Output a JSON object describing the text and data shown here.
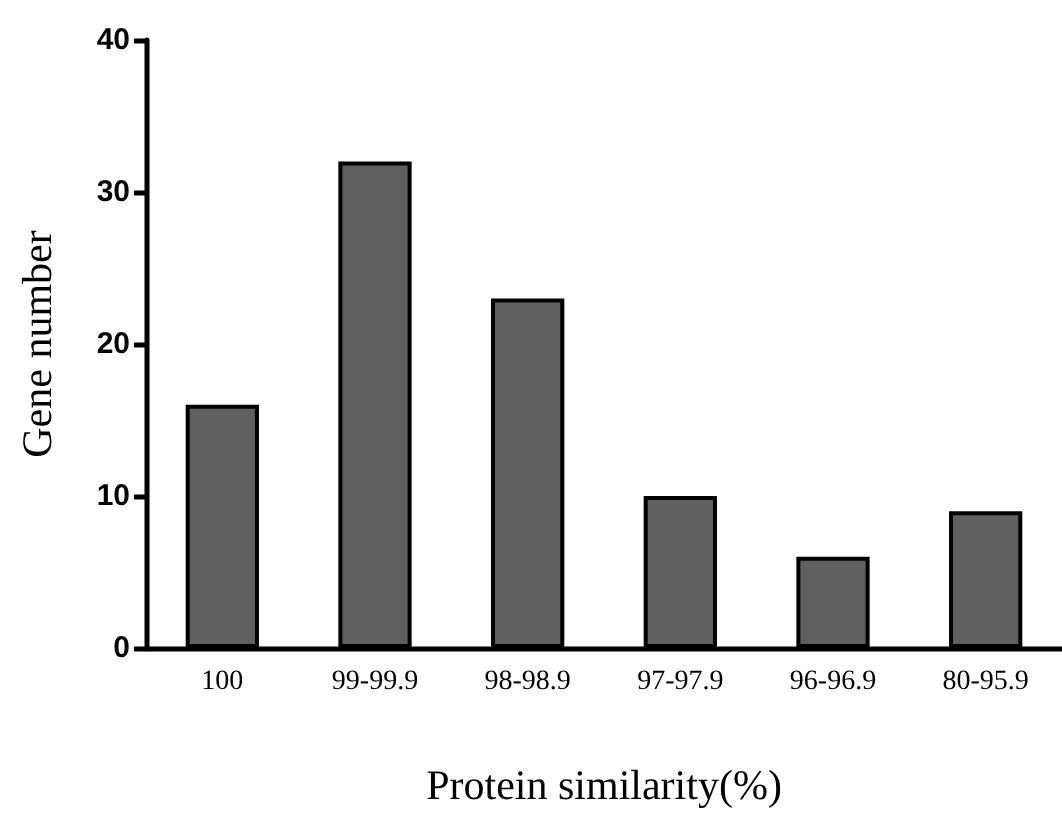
{
  "chart_data": {
    "type": "bar",
    "xlabel": "Protein similarity(%)",
    "ylabel": "Gene number",
    "categories": [
      "100",
      "99-99.9",
      "98-98.9",
      "97-97.9",
      "96-96.9",
      "80-95.9"
    ],
    "values": [
      16,
      32,
      23,
      10,
      6,
      9
    ],
    "color": "#606060",
    "ylim": [
      0,
      40
    ],
    "yticks": [
      0,
      10,
      20,
      30,
      40
    ],
    "grid": false
  }
}
